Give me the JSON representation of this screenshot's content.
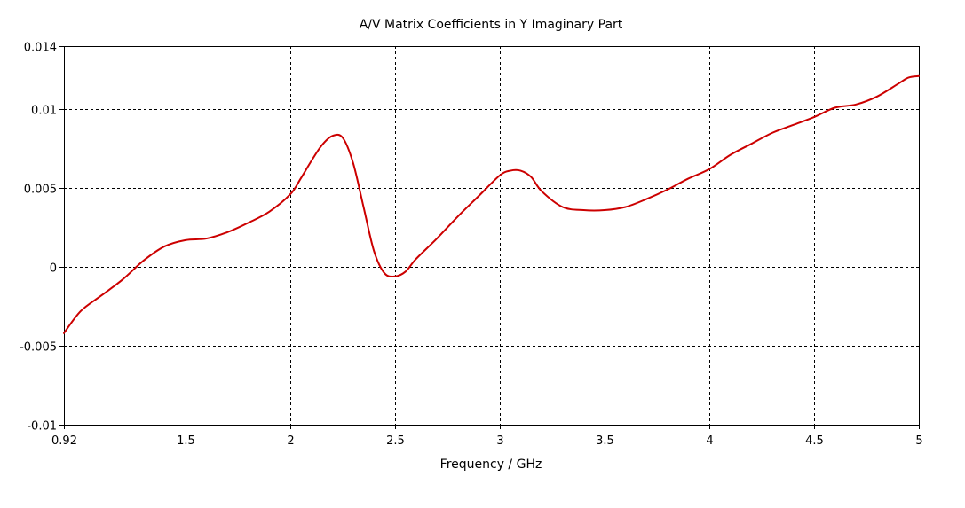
{
  "chart_data": {
    "type": "line",
    "title": "A/V Matrix Coefficients in Y Imaginary Part",
    "xlabel": "Frequency / GHz",
    "ylabel": "",
    "xlim": [
      0.92,
      5
    ],
    "ylim": [
      -0.01,
      0.014
    ],
    "x_ticks": [
      0.92,
      1.5,
      2,
      2.5,
      3,
      3.5,
      4,
      4.5,
      5
    ],
    "x_tick_labels": [
      "0.92",
      "1.5",
      "2",
      "2.5",
      "3",
      "3.5",
      "4",
      "4.5",
      "5"
    ],
    "y_ticks": [
      -0.01,
      -0.005,
      0,
      0.005,
      0.01,
      0.014
    ],
    "y_tick_labels": [
      "-0.01",
      "-0.005",
      "0",
      "0.005",
      "0.01",
      "0.014"
    ],
    "grid": true,
    "series": [
      {
        "color": "#cc0000",
        "x": [
          0.92,
          1.0,
          1.1,
          1.2,
          1.3,
          1.4,
          1.5,
          1.6,
          1.7,
          1.8,
          1.9,
          2.0,
          2.05,
          2.1,
          2.15,
          2.2,
          2.25,
          2.3,
          2.35,
          2.4,
          2.45,
          2.5,
          2.55,
          2.6,
          2.7,
          2.8,
          2.9,
          3.0,
          3.05,
          3.1,
          3.15,
          3.2,
          3.3,
          3.4,
          3.5,
          3.6,
          3.7,
          3.8,
          3.9,
          4.0,
          4.1,
          4.2,
          4.3,
          4.4,
          4.5,
          4.6,
          4.7,
          4.8,
          4.9,
          4.95,
          5.0
        ],
        "values": [
          -0.0042,
          -0.0028,
          -0.0018,
          -0.0008,
          0.0004,
          0.0013,
          0.0017,
          0.0018,
          0.0022,
          0.0028,
          0.0035,
          0.0046,
          0.0056,
          0.0067,
          0.0077,
          0.0083,
          0.0082,
          0.0066,
          0.0038,
          0.001,
          -0.0004,
          -0.0006,
          -0.0003,
          0.0005,
          0.0018,
          0.0032,
          0.0045,
          0.0058,
          0.0061,
          0.0061,
          0.0057,
          0.0048,
          0.0038,
          0.0036,
          0.0036,
          0.0038,
          0.0043,
          0.0049,
          0.0056,
          0.0062,
          0.0071,
          0.0078,
          0.0085,
          0.009,
          0.0095,
          0.0101,
          0.0103,
          0.0108,
          0.0116,
          0.012,
          0.0121
        ]
      }
    ]
  }
}
